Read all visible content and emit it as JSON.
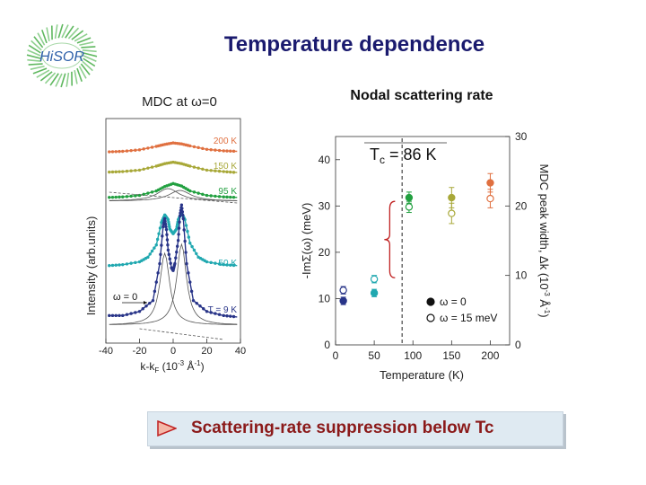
{
  "slide": {
    "title": "Temperature dependence",
    "logo_text": "HiSOR",
    "banner_text": "Scattering-rate suppression below Tc"
  },
  "colors": {
    "c200": "#e07040",
    "c150": "#a8a838",
    "c95": "#22a040",
    "c50": "#20a8b0",
    "c9": "#283488",
    "brace": "#c02020"
  },
  "chart_data": [
    {
      "type": "line",
      "title": "MDC at ω=0",
      "xlabel": "k-k",
      "xlabel_sub": "F",
      "xlabel_units": "(10",
      "xlabel_exp": "-3",
      "xlabel_tail": "Å",
      "xlabel_tail_exp": "-1",
      "xlabel_close": ")",
      "ylabel": "Intensity (arb.units)",
      "xlim": [
        -40,
        40
      ],
      "x_ticks": [
        "-40",
        "-20",
        "0",
        "20",
        "40"
      ],
      "inner_label": "ω = 0",
      "series": [
        {
          "name": "200 K",
          "color": "#e07040",
          "baseline": 0.935,
          "width": 15,
          "x": [
            -38,
            -30,
            -20,
            -10,
            -5,
            0,
            5,
            10,
            20,
            30,
            38
          ],
          "y": [
            0.09,
            0.1,
            0.13,
            0.2,
            0.24,
            0.27,
            0.25,
            0.21,
            0.14,
            0.11,
            0.1
          ]
        },
        {
          "name": "150 K",
          "color": "#a8a838",
          "baseline": 1.02,
          "width": 13,
          "x": [
            -38,
            -30,
            -20,
            -10,
            -5,
            0,
            5,
            10,
            20,
            30,
            38
          ],
          "y": [
            0.08,
            0.09,
            0.12,
            0.2,
            0.25,
            0.28,
            0.25,
            0.2,
            0.12,
            0.09,
            0.07
          ]
        },
        {
          "name": "95 K",
          "color": "#22a040",
          "baseline": 1.05,
          "width": 11,
          "x": [
            -38,
            -30,
            -20,
            -10,
            -5,
            0,
            5,
            10,
            20,
            30,
            38
          ],
          "y": [
            0.04,
            0.05,
            0.08,
            0.17,
            0.26,
            0.32,
            0.27,
            0.17,
            0.08,
            0.05,
            0.04
          ]
        },
        {
          "name": "50 K",
          "color": "#20a8b0",
          "baseline": 1.0,
          "width": 5,
          "x": [
            -38,
            -30,
            -20,
            -15,
            -10,
            -7,
            -5,
            -3,
            -2,
            0,
            2,
            3,
            5,
            7,
            10,
            15,
            20,
            30,
            38
          ],
          "y": [
            0.06,
            0.07,
            0.1,
            0.15,
            0.28,
            0.52,
            0.6,
            0.55,
            0.45,
            0.4,
            0.45,
            0.55,
            0.62,
            0.55,
            0.3,
            0.15,
            0.1,
            0.07,
            0.06
          ]
        },
        {
          "name": "T = 9 K",
          "color": "#283488",
          "baseline": 1.0,
          "width": 4,
          "x": [
            -38,
            -30,
            -20,
            -12,
            -8,
            -6,
            -5,
            -4,
            -3,
            -1,
            0,
            1,
            3,
            4,
            5,
            6,
            8,
            12,
            20,
            30,
            38
          ],
          "y": [
            0.07,
            0.07,
            0.1,
            0.18,
            0.45,
            0.72,
            0.78,
            0.7,
            0.55,
            0.42,
            0.4,
            0.45,
            0.62,
            0.8,
            0.88,
            0.78,
            0.45,
            0.18,
            0.1,
            0.07,
            0.06
          ]
        }
      ]
    },
    {
      "type": "scatter",
      "title": "Nodal scattering rate",
      "xlabel": "Temperature (K)",
      "ylabel": "-ImΣ(ω)  (meV)",
      "ylabel2_line1": "MDC peak width, Δk (10",
      "ylabel2_exp": "-3",
      "ylabel2_tail": "Å",
      "ylabel2_tail_exp": "-1",
      "ylabel2_close": ")",
      "xlim": [
        0,
        225
      ],
      "ylim": [
        0,
        45
      ],
      "ylim2": [
        0,
        30
      ],
      "x_ticks": [
        0,
        50,
        100,
        150,
        200
      ],
      "y_ticks": [
        0,
        10,
        20,
        30,
        40
      ],
      "y2_ticks": [
        0,
        10,
        20,
        30
      ],
      "annotation": "T",
      "annotation_sub": "c",
      "annotation_tail": " = 86 K",
      "tc": 86,
      "legend": [
        {
          "label": "ω = 0",
          "filled": true
        },
        {
          "label": "ω = 15 meV",
          "filled": false
        }
      ],
      "series": [
        {
          "name": "ω = 0",
          "filled": true,
          "x": [
            10,
            50,
            95,
            150,
            200
          ],
          "y": [
            9.5,
            11.2,
            31.8,
            31.8,
            35.0
          ],
          "err": [
            0.8,
            0.8,
            1.2,
            2.2,
            2.0
          ],
          "colors": [
            "#283488",
            "#20a8b0",
            "#22a040",
            "#a8a838",
            "#e07040"
          ]
        },
        {
          "name": "ω = 15 meV",
          "filled": false,
          "x": [
            10,
            50,
            95,
            150,
            200
          ],
          "y": [
            11.8,
            14.2,
            29.8,
            28.4,
            31.6
          ],
          "err": [
            0.8,
            0.8,
            1.2,
            2.2,
            2.0
          ],
          "colors": [
            "#283488",
            "#20a8b0",
            "#22a040",
            "#a8a838",
            "#e07040"
          ]
        }
      ]
    }
  ]
}
